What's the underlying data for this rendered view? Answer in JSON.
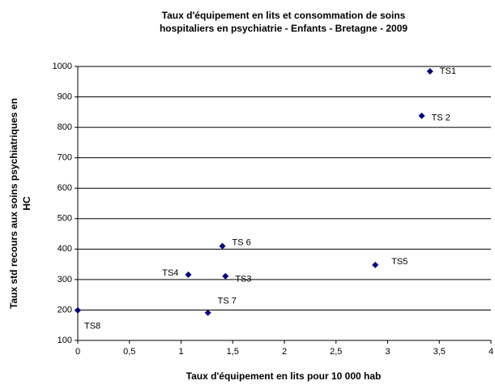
{
  "chart_data": {
    "type": "scatter",
    "title": [
      "Taux d'équipement en lits et consommation de soins",
      "hospitaliers en psychiatrie - Enfants - Bretagne - 2009"
    ],
    "x_label": "Taux d'équipement en lits pour 10 000 hab",
    "y_label": [
      "Taux std recours aux soins psychiatriques en",
      "HC"
    ],
    "series": [
      {
        "color": "#000080",
        "labels": [
          "TS1",
          "TS 2",
          "TS 6",
          "TS4",
          "TS3",
          "TS5",
          "TS 7",
          "TS8"
        ],
        "x": [
          3.41,
          3.33,
          1.4,
          1.07,
          1.43,
          2.88,
          1.26,
          0
        ],
        "values": [
          984,
          838,
          410,
          316,
          311,
          348,
          191,
          199
        ]
      }
    ],
    "xlim": [
      0,
      4
    ],
    "xticks": [
      0,
      {
        "value": 0.5,
        "label": "0,5"
      },
      1,
      {
        "value": 1.5,
        "label": "1,5"
      },
      2,
      {
        "value": 2.5,
        "label": "2,5"
      },
      3,
      {
        "value": 3.5,
        "label": "3,5"
      },
      4
    ],
    "ylim": [
      100,
      1000
    ],
    "yticks": [
      100,
      200,
      300,
      400,
      500,
      600,
      700,
      800,
      900,
      1000
    ],
    "grid": true
  }
}
